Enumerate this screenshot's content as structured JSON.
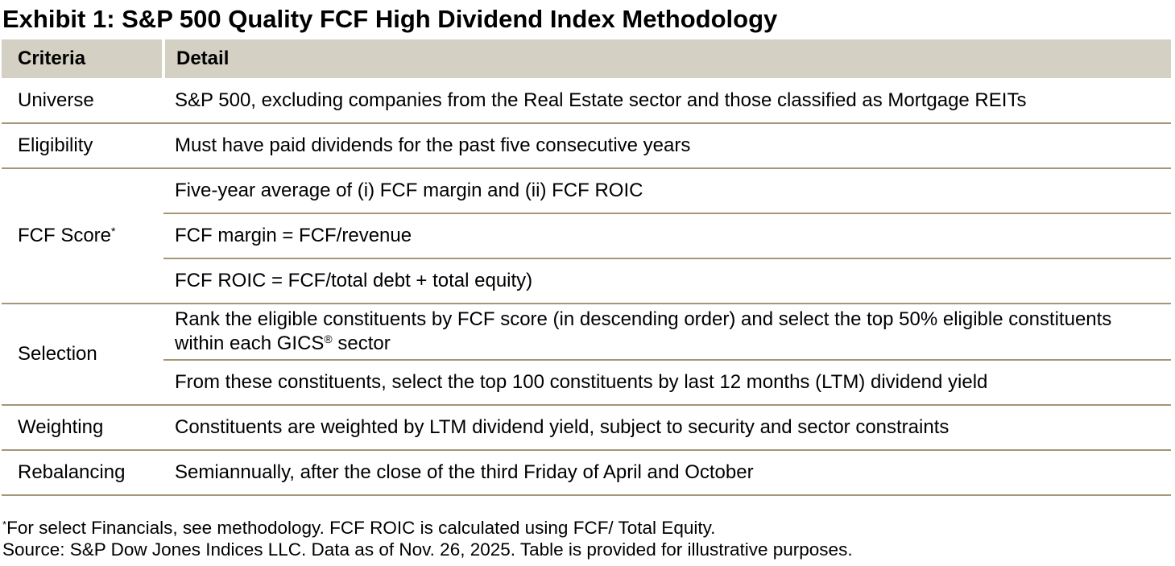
{
  "title": "Exhibit 1: S&P 500 Quality FCF High Dividend Index Methodology",
  "colors": {
    "header_background": "#d5d0c4",
    "divider_line": "#a49676",
    "text": "#000000",
    "page_background": "#ffffff"
  },
  "table": {
    "columns": [
      "Criteria",
      "Detail"
    ],
    "rows": [
      {
        "criteria": "Universe",
        "details": [
          "S&P 500, excluding companies from the Real Estate sector and those classified as Mortgage REITs"
        ]
      },
      {
        "criteria": "Eligibility",
        "details": [
          "Must have paid dividends for the past five consecutive years"
        ]
      },
      {
        "criteria": "FCF Score",
        "criteria_superscript": "*",
        "details": [
          "Five-year average of (i) FCF margin and (ii) FCF ROIC",
          "FCF margin = FCF/revenue",
          "FCF ROIC = FCF/total debt + total equity)"
        ]
      },
      {
        "criteria": "Selection",
        "details": [
          {
            "pre": "Rank the eligible constituents by FCF score (in descending order) and select the top 50% eligible constituents within each GICS",
            "sup": "®",
            "post": " sector"
          },
          "From these constituents, select the top 100 constituents by last 12 months (LTM) dividend yield"
        ]
      },
      {
        "criteria": "Weighting",
        "details": [
          "Constituents are weighted by LTM dividend yield, subject to security and sector constraints"
        ]
      },
      {
        "criteria": "Rebalancing",
        "details": [
          "Semiannually, after the close of the third Friday of April and October"
        ]
      }
    ]
  },
  "footnotes": {
    "line1_superscript": "*",
    "line1": "For select Financials, see methodology. FCF ROIC is calculated using FCF/ Total Equity.",
    "line2": "Source: S&P Dow Jones Indices LLC. Data as of Nov. 26, 2025. Table is provided for illustrative purposes."
  }
}
